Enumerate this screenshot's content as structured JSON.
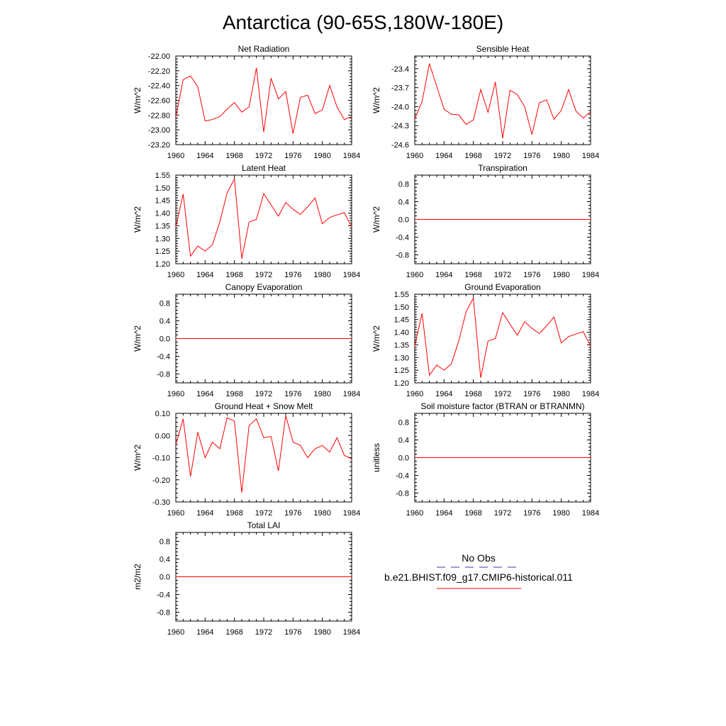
{
  "page_title": "Antarctica (90-65S,180W-180E)",
  "legend": {
    "items": [
      {
        "label": "No Obs",
        "color": "#3a3aa0",
        "dash": true
      },
      {
        "label": "b.e21.BHIST.f09_g17.CMIP6-historical.011",
        "color": "#ff0000",
        "dash": false
      }
    ]
  },
  "chart_data": [
    {
      "type": "line",
      "title": "Net Radiation",
      "ylabel": "W/m^2",
      "xlim": [
        1960,
        1984
      ],
      "ylim": [
        -23.2,
        -22.0
      ],
      "xticks": [
        "1960",
        "1964",
        "1968",
        "1972",
        "1976",
        "1980",
        "1984"
      ],
      "yticks": [
        -22.0,
        -22.2,
        -22.4,
        -22.6,
        -22.8,
        -23.0,
        -23.2
      ],
      "ytick_labels": [
        "-22.00",
        "-22.20",
        "-22.40",
        "-22.60",
        "-22.80",
        "-23.00",
        "-23.20"
      ],
      "series": [
        {
          "color": "#ff0000",
          "x": [
            1960,
            1961,
            1962,
            1963,
            1964,
            1965,
            1966,
            1967,
            1968,
            1969,
            1970,
            1971,
            1972,
            1973,
            1974,
            1975,
            1976,
            1977,
            1978,
            1979,
            1980,
            1981,
            1982,
            1983,
            1984
          ],
          "y": [
            -22.83,
            -22.32,
            -22.27,
            -22.42,
            -22.88,
            -22.86,
            -22.82,
            -22.72,
            -22.63,
            -22.76,
            -22.69,
            -22.16,
            -23.03,
            -22.3,
            -22.58,
            -22.48,
            -23.05,
            -22.56,
            -22.53,
            -22.78,
            -22.73,
            -22.4,
            -22.69,
            -22.86,
            -22.82
          ]
        }
      ]
    },
    {
      "type": "line",
      "title": "Sensible Heat",
      "ylabel": "W/m^2",
      "xlim": [
        1960,
        1984
      ],
      "ylim": [
        -24.6,
        -23.2
      ],
      "xticks": [
        "1960",
        "1964",
        "1968",
        "1972",
        "1976",
        "1980",
        "1984"
      ],
      "yticks": [
        -23.4,
        -23.7,
        -24.0,
        -24.3,
        -24.6
      ],
      "ytick_labels": [
        "-23.4",
        "-23.7",
        "-24.0",
        "-24.3",
        "-24.6"
      ],
      "series": [
        {
          "color": "#ff0000",
          "x": [
            1960,
            1961,
            1962,
            1963,
            1964,
            1965,
            1966,
            1967,
            1968,
            1969,
            1970,
            1971,
            1972,
            1973,
            1974,
            1975,
            1976,
            1977,
            1978,
            1979,
            1980,
            1981,
            1982,
            1983,
            1984
          ],
          "y": [
            -24.19,
            -23.92,
            -23.32,
            -23.68,
            -24.04,
            -24.12,
            -24.13,
            -24.28,
            -24.21,
            -23.73,
            -24.09,
            -23.61,
            -24.5,
            -23.74,
            -23.81,
            -24.0,
            -24.44,
            -23.94,
            -23.89,
            -24.2,
            -24.06,
            -23.73,
            -24.07,
            -24.18,
            -24.08
          ]
        }
      ]
    },
    {
      "type": "line",
      "title": "Latent Heat",
      "ylabel": "W/m^2",
      "xlim": [
        1960,
        1984
      ],
      "ylim": [
        1.2,
        1.55
      ],
      "xticks": [
        "1960",
        "1964",
        "1968",
        "1972",
        "1976",
        "1980",
        "1984"
      ],
      "yticks": [
        1.55,
        1.5,
        1.45,
        1.4,
        1.35,
        1.3,
        1.25,
        1.2
      ],
      "ytick_labels": [
        "1.55",
        "1.50",
        "1.45",
        "1.40",
        "1.35",
        "1.30",
        "1.25",
        "1.20"
      ],
      "series": [
        {
          "color": "#ff0000",
          "x": [
            1960,
            1961,
            1962,
            1963,
            1964,
            1965,
            1966,
            1967,
            1968,
            1969,
            1970,
            1971,
            1972,
            1973,
            1974,
            1975,
            1976,
            1977,
            1978,
            1979,
            1980,
            1981,
            1982,
            1983,
            1984
          ],
          "y": [
            1.345,
            1.475,
            1.23,
            1.27,
            1.25,
            1.275,
            1.365,
            1.48,
            1.535,
            1.22,
            1.365,
            1.375,
            1.477,
            1.432,
            1.388,
            1.442,
            1.415,
            1.395,
            1.425,
            1.46,
            1.358,
            1.383,
            1.393,
            1.402,
            1.345
          ]
        }
      ]
    },
    {
      "type": "line",
      "title": "Transpiration",
      "ylabel": "W/m^2",
      "xlim": [
        1960,
        1984
      ],
      "ylim": [
        -1.0,
        1.0
      ],
      "xticks": [
        "1960",
        "1964",
        "1968",
        "1972",
        "1976",
        "1980",
        "1984"
      ],
      "yticks": [
        0.8,
        0.4,
        0.0,
        -0.4,
        -0.8
      ],
      "ytick_labels": [
        "0.8",
        "0.4",
        "0.0",
        "-0.4",
        "-0.8"
      ],
      "series": [
        {
          "color": "#ff0000",
          "x": [
            1960,
            1984
          ],
          "y": [
            0,
            0
          ]
        }
      ]
    },
    {
      "type": "line",
      "title": "Canopy Evaporation",
      "ylabel": "W/m^2",
      "xlim": [
        1960,
        1984
      ],
      "ylim": [
        -1.0,
        1.0
      ],
      "xticks": [
        "1960",
        "1964",
        "1968",
        "1972",
        "1976",
        "1980",
        "1984"
      ],
      "yticks": [
        0.8,
        0.4,
        0.0,
        -0.4,
        -0.8
      ],
      "ytick_labels": [
        "0.8",
        "0.4",
        "0.0",
        "-0.4",
        "-0.8"
      ],
      "series": [
        {
          "color": "#ff0000",
          "x": [
            1960,
            1984
          ],
          "y": [
            0,
            0
          ]
        }
      ]
    },
    {
      "type": "line",
      "title": "Ground Evaporation",
      "ylabel": "W/m^2",
      "xlim": [
        1960,
        1984
      ],
      "ylim": [
        1.2,
        1.55
      ],
      "xticks": [
        "1960",
        "1964",
        "1968",
        "1972",
        "1976",
        "1980",
        "1984"
      ],
      "yticks": [
        1.55,
        1.5,
        1.45,
        1.4,
        1.35,
        1.3,
        1.25,
        1.2
      ],
      "ytick_labels": [
        "1.55",
        "1.50",
        "1.45",
        "1.40",
        "1.35",
        "1.30",
        "1.25",
        "1.20"
      ],
      "series": [
        {
          "color": "#ff0000",
          "x": [
            1960,
            1961,
            1962,
            1963,
            1964,
            1965,
            1966,
            1967,
            1968,
            1969,
            1970,
            1971,
            1972,
            1973,
            1974,
            1975,
            1976,
            1977,
            1978,
            1979,
            1980,
            1981,
            1982,
            1983,
            1984
          ],
          "y": [
            1.345,
            1.475,
            1.23,
            1.27,
            1.25,
            1.275,
            1.365,
            1.48,
            1.535,
            1.22,
            1.365,
            1.375,
            1.477,
            1.432,
            1.388,
            1.442,
            1.415,
            1.395,
            1.425,
            1.46,
            1.358,
            1.383,
            1.393,
            1.402,
            1.345
          ]
        }
      ]
    },
    {
      "type": "line",
      "title": "Ground Heat + Snow Melt",
      "ylabel": "W/m^2",
      "xlim": [
        1960,
        1984
      ],
      "ylim": [
        -0.3,
        0.1
      ],
      "xticks": [
        "1960",
        "1964",
        "1968",
        "1972",
        "1976",
        "1980",
        "1984"
      ],
      "yticks": [
        0.1,
        0.0,
        -0.1,
        -0.2,
        -0.3
      ],
      "ytick_labels": [
        "0.10",
        "0.00",
        "-0.10",
        "-0.20",
        "-0.30"
      ],
      "series": [
        {
          "color": "#ff0000",
          "x": [
            1960,
            1961,
            1962,
            1963,
            1964,
            1965,
            1966,
            1967,
            1968,
            1969,
            1970,
            1971,
            1972,
            1973,
            1974,
            1975,
            1976,
            1977,
            1978,
            1979,
            1980,
            1981,
            1982,
            1983,
            1984
          ],
          "y": [
            -0.04,
            0.075,
            -0.185,
            0.015,
            -0.1,
            -0.03,
            -0.06,
            0.08,
            0.065,
            -0.258,
            0.045,
            0.075,
            -0.01,
            -0.005,
            -0.16,
            0.09,
            -0.03,
            -0.045,
            -0.1,
            -0.06,
            -0.045,
            -0.075,
            -0.01,
            -0.09,
            -0.105
          ]
        }
      ]
    },
    {
      "type": "line",
      "title": "Soil moisture factor (BTRAN or BTRANMN)",
      "ylabel": "unitless",
      "xlim": [
        1960,
        1984
      ],
      "ylim": [
        -1.0,
        1.0
      ],
      "xticks": [
        "1960",
        "1964",
        "1968",
        "1972",
        "1976",
        "1980",
        "1984"
      ],
      "yticks": [
        0.8,
        0.4,
        0.0,
        -0.4,
        -0.8
      ],
      "ytick_labels": [
        "0.8",
        "0.4",
        "0.0",
        "-0.4",
        "-0.8"
      ],
      "series": [
        {
          "color": "#ff0000",
          "x": [
            1960,
            1984
          ],
          "y": [
            0,
            0
          ]
        }
      ]
    },
    {
      "type": "line",
      "title": "Total LAI",
      "ylabel": "m2/m2",
      "xlim": [
        1960,
        1984
      ],
      "ylim": [
        -1.0,
        1.0
      ],
      "xticks": [
        "1960",
        "1964",
        "1968",
        "1972",
        "1976",
        "1980",
        "1984"
      ],
      "yticks": [
        0.8,
        0.4,
        0.0,
        -0.4,
        -0.8
      ],
      "ytick_labels": [
        "0.8",
        "0.4",
        "0.0",
        "-0.4",
        "-0.8"
      ],
      "series": [
        {
          "color": "#ff0000",
          "x": [
            1960,
            1984
          ],
          "y": [
            0,
            0
          ]
        }
      ]
    }
  ]
}
